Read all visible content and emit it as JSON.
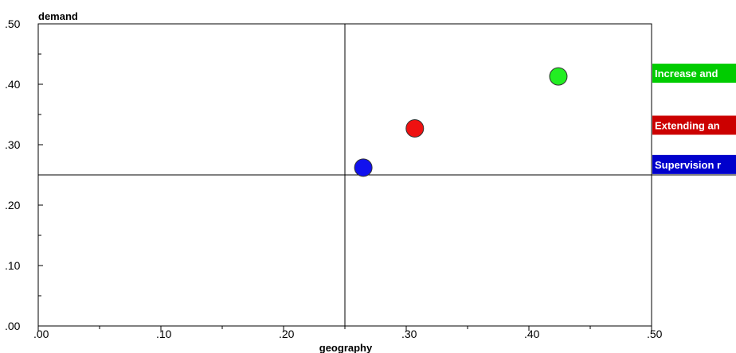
{
  "chart_data": {
    "type": "scatter",
    "xlabel": "geography",
    "ylabel": "demand",
    "xlim": [
      0,
      0.5
    ],
    "ylim": [
      0,
      0.5
    ],
    "x_ticks": [
      ".00",
      ".10",
      ".20",
      ".30",
      ".40",
      ".50"
    ],
    "y_ticks": [
      ".00",
      ".10",
      ".20",
      ".30",
      ".40",
      ".50"
    ],
    "reference_lines": {
      "x": 0.25,
      "y": 0.25
    },
    "grid": false,
    "legend_position": "right",
    "series": [
      {
        "name": "Increase and",
        "color": "#00cc00",
        "fill": "#22ee22",
        "x": 0.424,
        "y": 0.413
      },
      {
        "name": "Extending an",
        "color": "#cc0000",
        "fill": "#ee1111",
        "x": 0.307,
        "y": 0.327
      },
      {
        "name": "Supervision r",
        "color": "#0000cc",
        "fill": "#1111ee",
        "x": 0.265,
        "y": 0.262
      }
    ]
  }
}
